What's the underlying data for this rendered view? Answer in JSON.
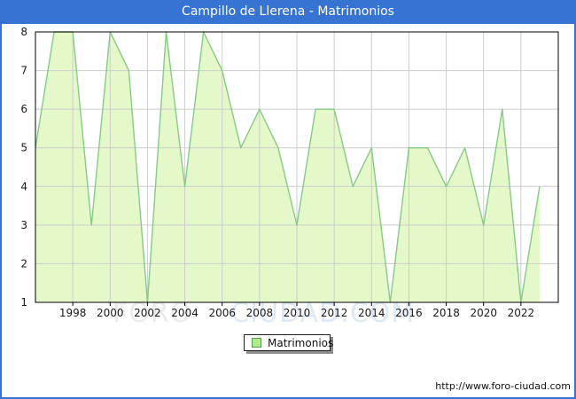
{
  "title_bar": {
    "title": "Campillo de Llerena - Matrimonios"
  },
  "chart_data": {
    "type": "area",
    "title": "Campillo de Llerena - Matrimonios",
    "series_name": "Matrimonios",
    "x": [
      1996,
      1997,
      1998,
      1999,
      2000,
      2001,
      2002,
      2003,
      2004,
      2005,
      2006,
      2007,
      2008,
      2009,
      2010,
      2011,
      2012,
      2013,
      2014,
      2015,
      2016,
      2017,
      2018,
      2019,
      2020,
      2021,
      2022,
      2023
    ],
    "values": [
      5,
      8,
      8,
      3,
      8,
      7,
      1,
      8,
      4,
      8,
      7,
      5,
      6,
      5,
      3,
      6,
      6,
      4,
      5,
      1,
      5,
      5,
      4,
      5,
      3,
      6,
      1,
      4
    ],
    "ylim": [
      1,
      8
    ],
    "xdomain": [
      1996,
      2024
    ],
    "y_ticks": [
      1,
      2,
      3,
      4,
      5,
      6,
      7,
      8
    ],
    "y_gridlines": [
      2,
      3,
      4,
      5,
      6,
      7
    ],
    "x_ticks": [
      1998,
      2000,
      2002,
      2004,
      2006,
      2008,
      2010,
      2012,
      2014,
      2016,
      2018,
      2020,
      2022
    ],
    "grid": true,
    "legend_position": "bottom",
    "fill_color": "#e5f8c9",
    "line_color": "#87c987",
    "grid_color": "#cccccc",
    "axis_color": "#000000",
    "tick_label_color": "#1a1a1a"
  },
  "legend": {
    "label": "Matrimonios",
    "swatch_fill": "#b2ea86",
    "swatch_border": "#559a55"
  },
  "watermark": {
    "part1": "FORO",
    "part2": "CIUDAD.COM"
  },
  "footer": {
    "url": "http://www.foro-ciudad.com"
  },
  "colors": {
    "accent_blue": "#3673d2",
    "background": "#ffffff"
  }
}
